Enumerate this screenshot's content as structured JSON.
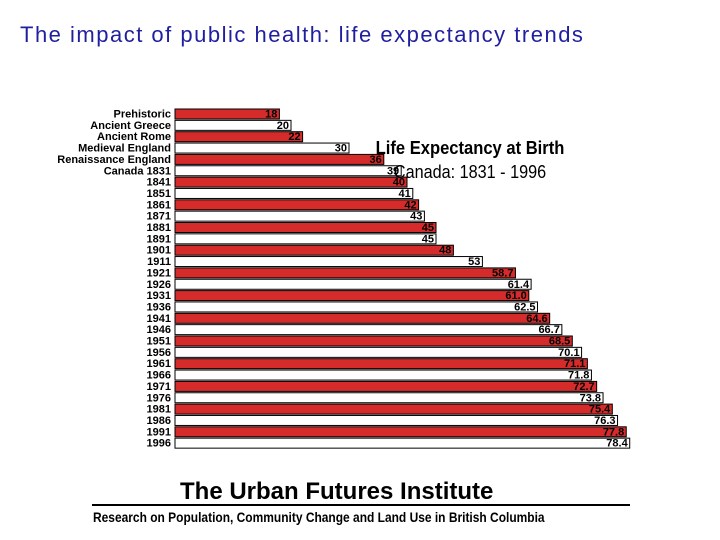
{
  "slide": {
    "title": "The impact of public health: life expectancy trends"
  },
  "chart_data": {
    "type": "bar",
    "orientation": "horizontal",
    "title": "Life Expectancy at Birth",
    "subtitle": "Canada: 1831 - 1996",
    "xlabel": "",
    "ylabel": "",
    "xlim": [
      0,
      80
    ],
    "grid": false,
    "legend": "none",
    "categories": [
      "Prehistoric",
      "Ancient Greece",
      "Ancient Rome",
      "Medieval England",
      "Renaissance England",
      "Canada 1831",
      "1841",
      "1851",
      "1861",
      "1871",
      "1881",
      "1891",
      "1901",
      "1911",
      "1921",
      "1926",
      "1931",
      "1936",
      "1941",
      "1946",
      "1951",
      "1956",
      "1961",
      "1966",
      "1971",
      "1976",
      "1981",
      "1986",
      "1991",
      "1996"
    ],
    "values": [
      18,
      20,
      22,
      30,
      36,
      39,
      40,
      41,
      42,
      43,
      45,
      45,
      48,
      53,
      58.7,
      61.4,
      61.0,
      62.5,
      64.6,
      66.7,
      68.5,
      70.1,
      71.1,
      71.8,
      72.7,
      73.8,
      75.4,
      76.3,
      77.8,
      78.4
    ],
    "value_labels": [
      "18",
      "20",
      "22",
      "30",
      "36",
      "39",
      "40",
      "41",
      "42",
      "43",
      "45",
      "45",
      "48",
      "53",
      "58.7",
      "61.4",
      "61.0",
      "62.5",
      "64.6",
      "66.7",
      "68.5",
      "70.1",
      "71.1",
      "71.8",
      "72.7",
      "73.8",
      "75.4",
      "76.3",
      "77.8",
      "78.4"
    ],
    "bar_color": "#d62b2b",
    "alt_bar_color": "#ffffff"
  },
  "footer": {
    "organization": "The Urban Futures Institute",
    "tagline": "Research on Population, Community Change and Land Use in British Columbia"
  }
}
